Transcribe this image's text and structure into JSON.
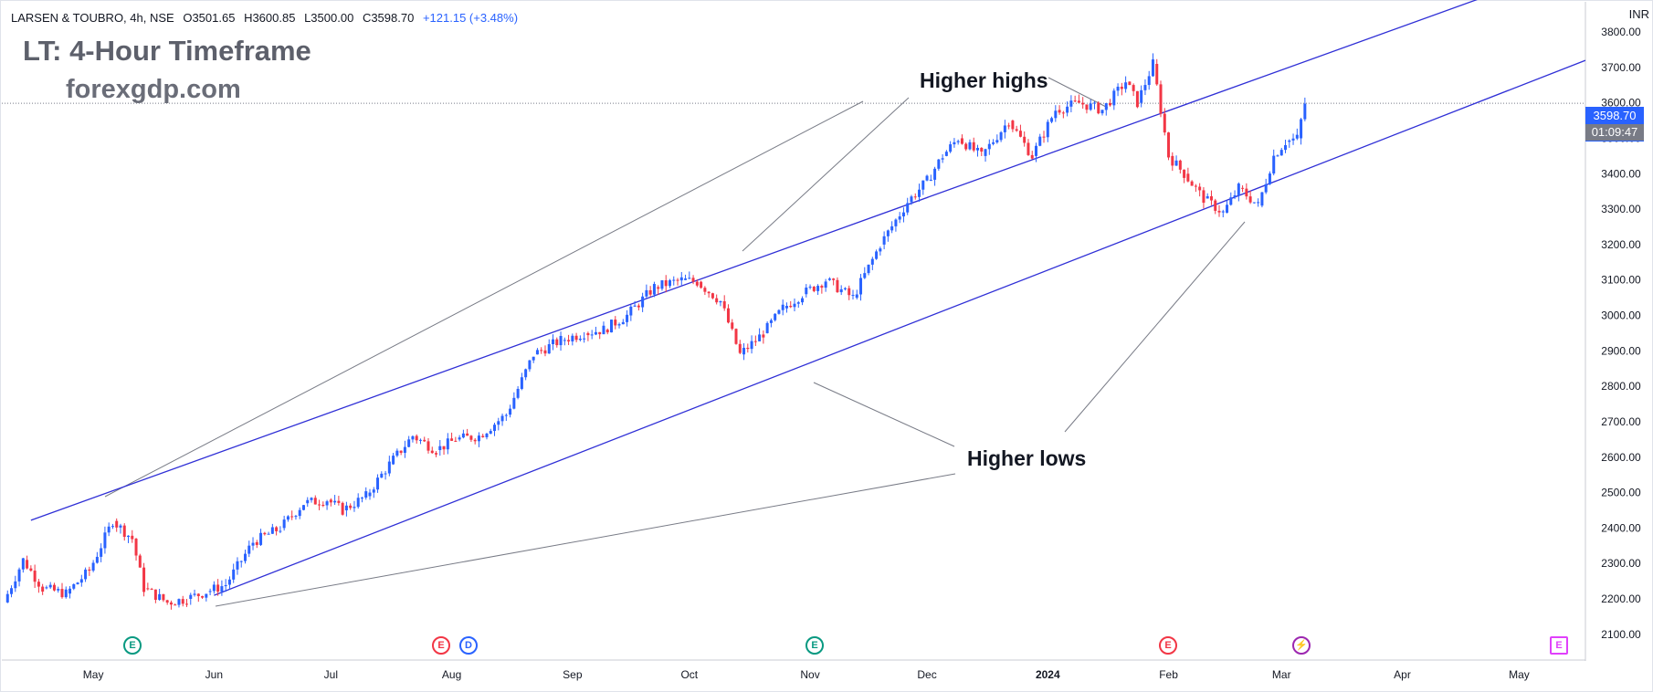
{
  "header": {
    "symbol": "LARSEN & TOUBRO, 4h, NSE",
    "open": "O3501.65",
    "high": "H3600.85",
    "low": "L3500.00",
    "close": "C3598.70",
    "change": "+121.15 (+3.48%)"
  },
  "title": "LT: 4-Hour Timeframe",
  "watermark": "forexgdp.com",
  "annotations": {
    "higher_highs": "Higher highs",
    "higher_lows": "Higher lows"
  },
  "currency": "INR",
  "last_price": "3598.70",
  "countdown": "01:09:47",
  "events": [
    {
      "label": "E",
      "color": "#089981"
    },
    {
      "label": "E",
      "color": "#f23645"
    },
    {
      "label": "D",
      "color": "#2962ff"
    },
    {
      "label": "E",
      "color": "#089981"
    },
    {
      "label": "E",
      "color": "#f23645"
    },
    {
      "label": "⚡",
      "color": "#9c27b0"
    },
    {
      "label": "E",
      "color": "#e040fb"
    }
  ],
  "colors": {
    "up": "#2962ff",
    "down": "#f23645",
    "channel": "#2f2fd6",
    "note_line": "#787b86"
  },
  "chart_data": {
    "type": "line",
    "instrument": "LARSEN & TOUBRO, 4h, NSE",
    "y_axis": {
      "ticks": [
        2100,
        2200,
        2300,
        2400,
        2500,
        2600,
        2700,
        2800,
        2900,
        3000,
        3100,
        3200,
        3300,
        3400,
        3500,
        3600,
        3700,
        3800
      ],
      "tick_labels": [
        "2100.00",
        "2200.00",
        "2300.00",
        "2400.00",
        "2500.00",
        "2600.00",
        "2700.00",
        "2800.00",
        "2900.00",
        "3000.00",
        "3100.00",
        "3200.00",
        "3300.00",
        "3400.00",
        "3500.00",
        "3600.00",
        "3700.00",
        "3800.00"
      ],
      "range": [
        2030,
        3880
      ],
      "position": "right"
    },
    "x_axis": {
      "tick_labels": [
        "May",
        "Jun",
        "Jul",
        "Aug",
        "Sep",
        "Oct",
        "Nov",
        "Dec",
        "2024",
        "Feb",
        "Mar",
        "Apr",
        "May"
      ],
      "ticks": [
        "2023-05-01",
        "2023-06-01",
        "2023-07-01",
        "2023-08-01",
        "2023-09-01",
        "2023-10-01",
        "2023-11-01",
        "2023-12-01",
        "2024-01-01",
        "2024-02-01",
        "2024-03-01",
        "2024-04-01",
        "2024-05-01"
      ],
      "range": [
        "2023-04-08",
        "2024-05-18"
      ]
    },
    "series": [
      {
        "type": "line",
        "x": [
          "2023-04-08",
          "2023-04-13",
          "2023-04-18",
          "2023-04-24",
          "2023-04-30",
          "2023-05-06",
          "2023-05-11",
          "2023-05-14",
          "2023-05-20",
          "2023-05-25",
          "2023-05-30",
          "2023-06-04",
          "2023-06-11",
          "2023-06-18",
          "2023-06-24",
          "2023-06-30",
          "2023-07-04",
          "2023-07-10",
          "2023-07-16",
          "2023-07-22",
          "2023-07-28",
          "2023-08-02",
          "2023-08-08",
          "2023-08-15",
          "2023-08-22",
          "2023-08-29",
          "2023-09-04",
          "2023-09-09",
          "2023-09-15",
          "2023-09-22",
          "2023-09-29",
          "2023-10-03",
          "2023-10-09",
          "2023-10-14",
          "2023-10-20",
          "2023-10-25",
          "2023-10-30",
          "2023-11-05",
          "2023-11-12",
          "2023-11-19",
          "2023-11-26",
          "2023-12-01",
          "2023-12-05",
          "2023-12-09",
          "2023-12-15",
          "2023-12-22",
          "2023-12-28",
          "2024-01-03",
          "2024-01-09",
          "2024-01-15",
          "2024-01-21",
          "2024-01-24",
          "2024-01-28",
          "2024-02-01",
          "2024-02-05",
          "2024-02-10",
          "2024-02-15",
          "2024-02-19",
          "2024-02-24",
          "2024-02-28",
          "2024-03-02",
          "2024-03-05",
          "2024-03-07"
        ],
        "y": [
          2190,
          2310,
          2230,
          2215,
          2280,
          2420,
          2370,
          2230,
          2190,
          2200,
          2220,
          2240,
          2360,
          2400,
          2470,
          2480,
          2450,
          2490,
          2580,
          2660,
          2620,
          2650,
          2660,
          2720,
          2890,
          2930,
          2950,
          2960,
          3000,
          3080,
          3100,
          3095,
          3040,
          2890,
          2950,
          3020,
          3060,
          3100,
          3050,
          3200,
          3320,
          3380,
          3450,
          3500,
          3450,
          3550,
          3450,
          3580,
          3600,
          3580,
          3660,
          3600,
          3710,
          3450,
          3400,
          3330,
          3290,
          3360,
          3310,
          3450,
          3490,
          3500,
          3598.7
        ]
      }
    ],
    "channel_lines": [
      {
        "name": "upper",
        "points": [
          [
            "2023-04-15",
            2422
          ],
          [
            "2024-05-10",
            3970
          ]
        ]
      },
      {
        "name": "lower",
        "points": [
          [
            "2023-06-01",
            2210
          ],
          [
            "2024-05-18",
            3720
          ]
        ]
      }
    ],
    "last_price": 3598.7,
    "grid": false,
    "legend": "none"
  }
}
